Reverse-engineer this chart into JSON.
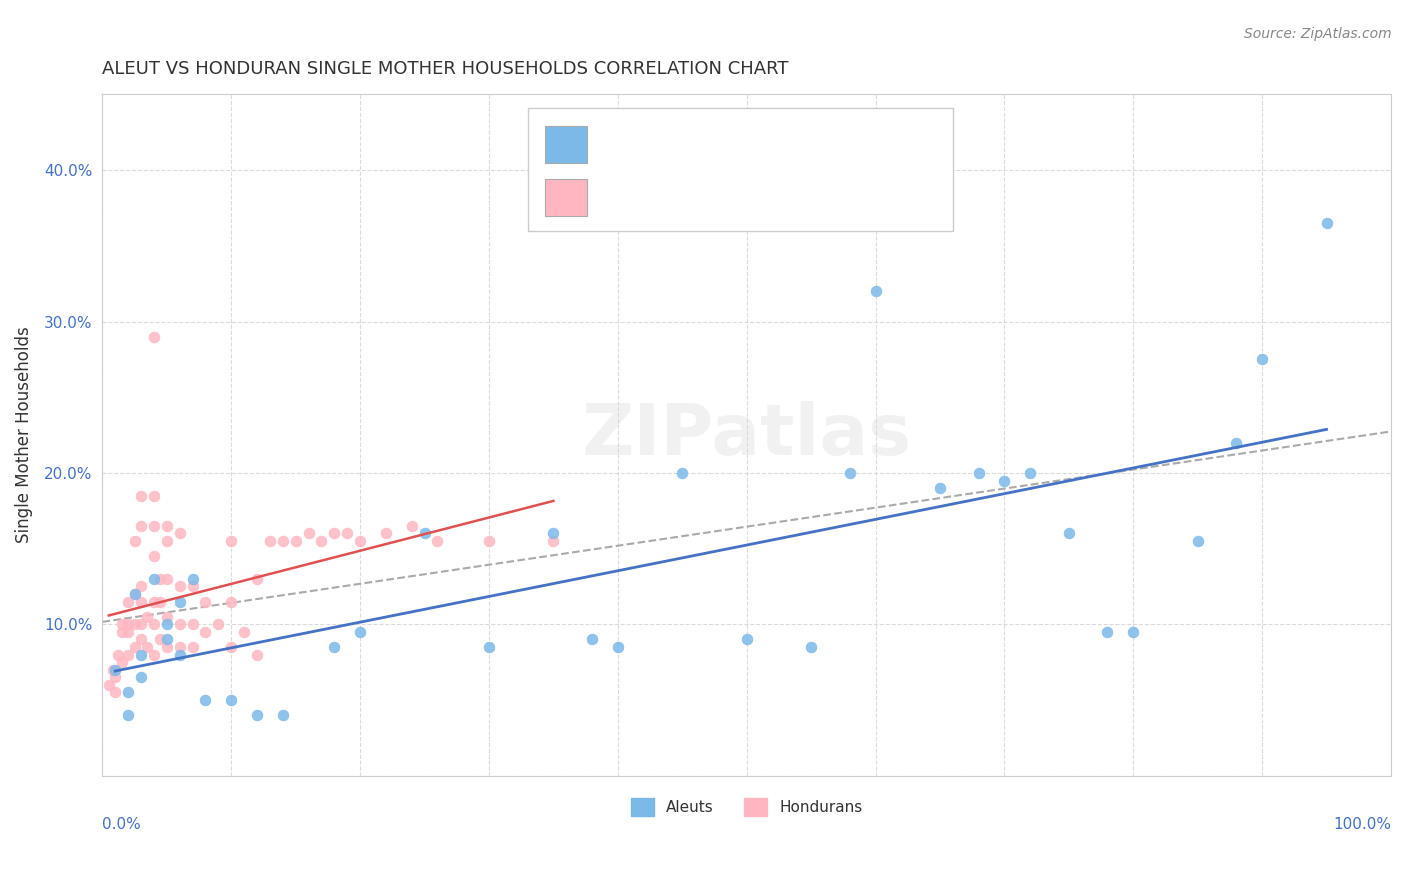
{
  "title": "ALEUT VS HONDURAN SINGLE MOTHER HOUSEHOLDS CORRELATION CHART",
  "source": "Source: ZipAtlas.com",
  "ylabel": "Single Mother Households",
  "aleut_color": "#7cb9e8",
  "honduran_color": "#ffb6c1",
  "aleut_line_color": "#4472c4",
  "honduran_line_color": "#e05050",
  "watermark": "ZIPatlas",
  "aleut_points": [
    [
      0.01,
      0.07
    ],
    [
      0.02,
      0.055
    ],
    [
      0.02,
      0.04
    ],
    [
      0.025,
      0.12
    ],
    [
      0.03,
      0.08
    ],
    [
      0.03,
      0.065
    ],
    [
      0.04,
      0.13
    ],
    [
      0.05,
      0.1
    ],
    [
      0.05,
      0.09
    ],
    [
      0.06,
      0.115
    ],
    [
      0.06,
      0.08
    ],
    [
      0.07,
      0.13
    ],
    [
      0.08,
      0.05
    ],
    [
      0.1,
      0.05
    ],
    [
      0.12,
      0.04
    ],
    [
      0.14,
      0.04
    ],
    [
      0.18,
      0.085
    ],
    [
      0.2,
      0.095
    ],
    [
      0.25,
      0.16
    ],
    [
      0.3,
      0.085
    ],
    [
      0.35,
      0.16
    ],
    [
      0.38,
      0.09
    ],
    [
      0.4,
      0.085
    ],
    [
      0.45,
      0.2
    ],
    [
      0.5,
      0.09
    ],
    [
      0.55,
      0.085
    ],
    [
      0.58,
      0.2
    ],
    [
      0.6,
      0.32
    ],
    [
      0.65,
      0.19
    ],
    [
      0.68,
      0.2
    ],
    [
      0.7,
      0.195
    ],
    [
      0.72,
      0.2
    ],
    [
      0.75,
      0.16
    ],
    [
      0.78,
      0.095
    ],
    [
      0.8,
      0.095
    ],
    [
      0.85,
      0.155
    ],
    [
      0.88,
      0.22
    ],
    [
      0.9,
      0.275
    ],
    [
      0.95,
      0.365
    ]
  ],
  "honduran_points": [
    [
      0.005,
      0.06
    ],
    [
      0.008,
      0.07
    ],
    [
      0.01,
      0.055
    ],
    [
      0.01,
      0.065
    ],
    [
      0.012,
      0.08
    ],
    [
      0.015,
      0.075
    ],
    [
      0.015,
      0.095
    ],
    [
      0.015,
      0.1
    ],
    [
      0.02,
      0.08
    ],
    [
      0.02,
      0.095
    ],
    [
      0.02,
      0.1
    ],
    [
      0.02,
      0.115
    ],
    [
      0.025,
      0.085
    ],
    [
      0.025,
      0.1
    ],
    [
      0.025,
      0.12
    ],
    [
      0.025,
      0.155
    ],
    [
      0.03,
      0.09
    ],
    [
      0.03,
      0.1
    ],
    [
      0.03,
      0.115
    ],
    [
      0.03,
      0.125
    ],
    [
      0.03,
      0.165
    ],
    [
      0.03,
      0.185
    ],
    [
      0.035,
      0.085
    ],
    [
      0.035,
      0.105
    ],
    [
      0.04,
      0.08
    ],
    [
      0.04,
      0.1
    ],
    [
      0.04,
      0.115
    ],
    [
      0.04,
      0.145
    ],
    [
      0.04,
      0.165
    ],
    [
      0.04,
      0.185
    ],
    [
      0.04,
      0.29
    ],
    [
      0.045,
      0.09
    ],
    [
      0.045,
      0.115
    ],
    [
      0.045,
      0.13
    ],
    [
      0.05,
      0.085
    ],
    [
      0.05,
      0.105
    ],
    [
      0.05,
      0.13
    ],
    [
      0.05,
      0.155
    ],
    [
      0.05,
      0.165
    ],
    [
      0.06,
      0.085
    ],
    [
      0.06,
      0.1
    ],
    [
      0.06,
      0.125
    ],
    [
      0.06,
      0.16
    ],
    [
      0.07,
      0.085
    ],
    [
      0.07,
      0.1
    ],
    [
      0.07,
      0.125
    ],
    [
      0.08,
      0.095
    ],
    [
      0.08,
      0.115
    ],
    [
      0.09,
      0.1
    ],
    [
      0.1,
      0.085
    ],
    [
      0.1,
      0.115
    ],
    [
      0.1,
      0.155
    ],
    [
      0.11,
      0.095
    ],
    [
      0.12,
      0.08
    ],
    [
      0.12,
      0.13
    ],
    [
      0.13,
      0.155
    ],
    [
      0.14,
      0.155
    ],
    [
      0.15,
      0.155
    ],
    [
      0.16,
      0.16
    ],
    [
      0.17,
      0.155
    ],
    [
      0.18,
      0.16
    ],
    [
      0.19,
      0.16
    ],
    [
      0.2,
      0.155
    ],
    [
      0.22,
      0.16
    ],
    [
      0.24,
      0.165
    ],
    [
      0.26,
      0.155
    ],
    [
      0.3,
      0.155
    ],
    [
      0.35,
      0.155
    ]
  ],
  "xlim": [
    0.0,
    1.0
  ],
  "ylim": [
    0.0,
    0.45
  ],
  "yticks": [
    0.0,
    0.1,
    0.2,
    0.3,
    0.4
  ],
  "ytick_labels": [
    "",
    "10.0%",
    "20.0%",
    "30.0%",
    "40.0%"
  ],
  "background_color": "#ffffff",
  "grid_color": "#cccccc",
  "title_color": "#333333",
  "axis_label_color": "#4472c4"
}
